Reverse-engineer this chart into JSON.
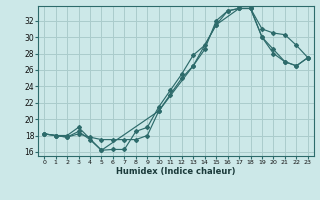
{
  "xlabel": "Humidex (Indice chaleur)",
  "bg_color": "#cce8e8",
  "grid_color": "#aacccc",
  "line_color": "#2d6b6b",
  "xlim": [
    -0.5,
    23.5
  ],
  "ylim": [
    15.5,
    33.8
  ],
  "xticks": [
    0,
    1,
    2,
    3,
    4,
    5,
    6,
    7,
    8,
    9,
    10,
    11,
    12,
    13,
    14,
    15,
    16,
    17,
    18,
    19,
    20,
    21,
    22,
    23
  ],
  "yticks": [
    16,
    18,
    20,
    22,
    24,
    26,
    28,
    30,
    32
  ],
  "line1_x": [
    0,
    1,
    2,
    3,
    4,
    5,
    6,
    7,
    8,
    9,
    10,
    11,
    12,
    13,
    14,
    15,
    16,
    17,
    18,
    19,
    20,
    21,
    22,
    23
  ],
  "line1_y": [
    18.2,
    18.0,
    17.8,
    18.5,
    17.5,
    16.2,
    16.3,
    16.3,
    18.5,
    19.0,
    21.5,
    23.5,
    25.5,
    27.8,
    29.0,
    31.5,
    33.2,
    33.5,
    33.5,
    31.0,
    30.5,
    30.3,
    29.0,
    27.5
  ],
  "line2_x": [
    0,
    1,
    2,
    3,
    4,
    5,
    6,
    7,
    8,
    9,
    10,
    11,
    12,
    13,
    14,
    15,
    16,
    17,
    18,
    19,
    20,
    21,
    22,
    23
  ],
  "line2_y": [
    18.2,
    18.0,
    17.8,
    18.2,
    17.8,
    17.5,
    17.5,
    17.5,
    17.5,
    18.0,
    21.0,
    23.0,
    25.0,
    26.5,
    28.5,
    32.0,
    33.2,
    33.5,
    33.5,
    30.0,
    28.0,
    27.0,
    26.5,
    27.5
  ],
  "line3_x": [
    0,
    1,
    2,
    3,
    5,
    10,
    13,
    15,
    17,
    18,
    19,
    20,
    21,
    22,
    23
  ],
  "line3_y": [
    18.2,
    18.0,
    18.0,
    19.0,
    16.2,
    21.0,
    26.5,
    31.5,
    33.5,
    33.5,
    30.0,
    28.5,
    27.0,
    26.5,
    27.5
  ]
}
